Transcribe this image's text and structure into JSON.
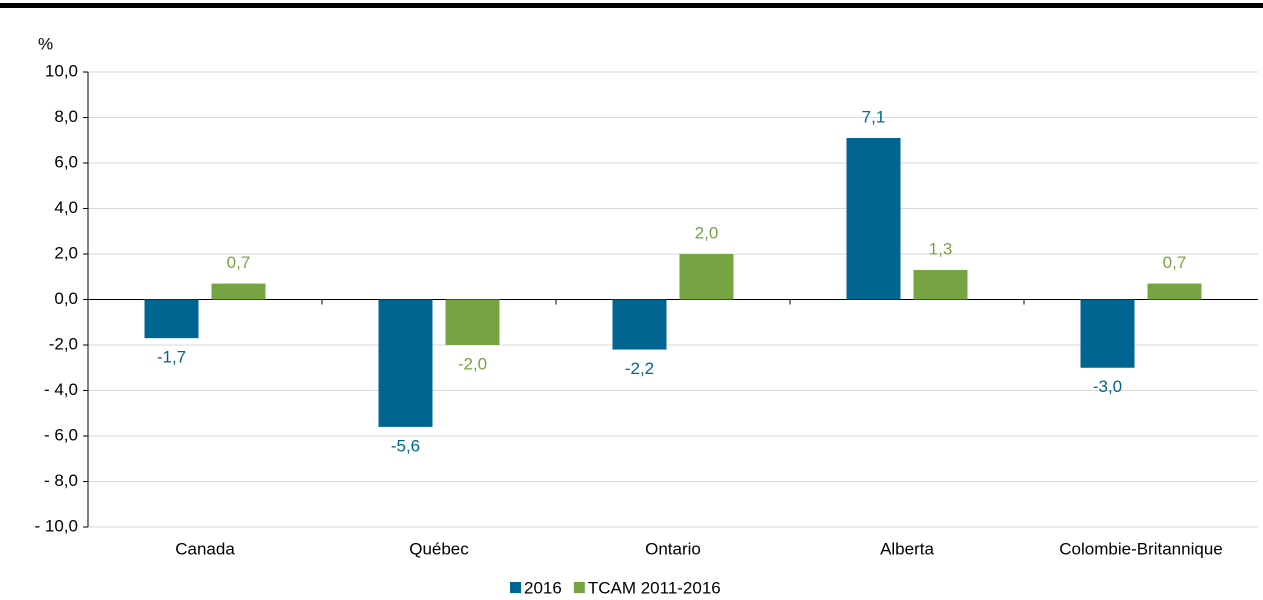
{
  "chart_data": {
    "type": "bar",
    "y_label": "%",
    "categories": [
      "Canada",
      "Québec",
      "Ontario",
      "Alberta",
      "Colombie-Britannique"
    ],
    "series": [
      {
        "name": "2016",
        "color": "#006691",
        "values": [
          -1.7,
          -5.6,
          -2.2,
          7.1,
          -3.0
        ],
        "value_labels": [
          "-1,7",
          "-5,6",
          "-2,2",
          "7,1",
          "-3,0"
        ]
      },
      {
        "name": "TCAM 2011-2016",
        "color": "#77a443",
        "values": [
          0.7,
          -2.0,
          2.0,
          1.3,
          0.7
        ],
        "value_labels": [
          "0,7",
          "-2,0",
          "2,0",
          "1,3",
          "0,7"
        ]
      }
    ],
    "ylim": [
      -10,
      10
    ],
    "yticks": [
      {
        "value": 10,
        "label": "10,0"
      },
      {
        "value": 8,
        "label": "8,0"
      },
      {
        "value": 6,
        "label": "6,0"
      },
      {
        "value": 4,
        "label": "4,0"
      },
      {
        "value": 2,
        "label": "2,0"
      },
      {
        "value": 0,
        "label": "0,0"
      },
      {
        "value": -2,
        "label": "-2,0"
      },
      {
        "value": -4,
        "label": "- 4,0"
      },
      {
        "value": -6,
        "label": "- 6,0"
      },
      {
        "value": -8,
        "label": "- 8,0"
      },
      {
        "value": -10,
        "label": "- 10,0"
      }
    ],
    "grid": true,
    "legend": "bottom"
  }
}
